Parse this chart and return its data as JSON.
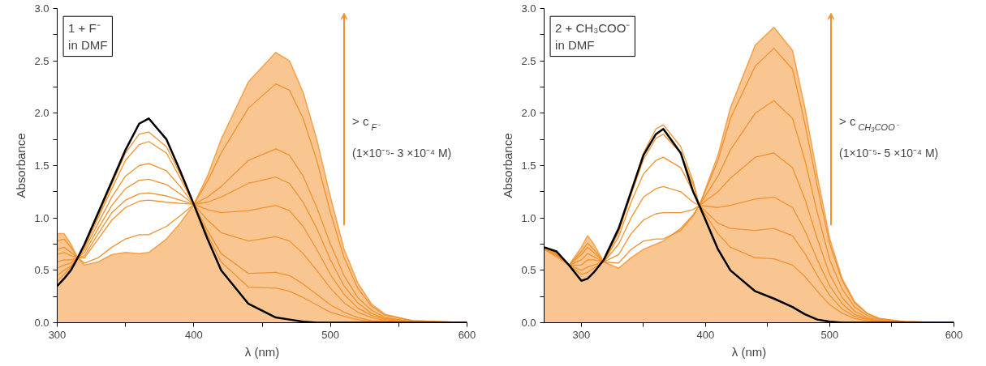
{
  "chart_data": [
    {
      "type": "line",
      "xlabel": "λ (nm)",
      "ylabel": "Absorbance",
      "xlim": [
        300,
        600
      ],
      "ylim": [
        0,
        3
      ],
      "xticks": [
        300,
        {
          "value": 350,
          "label": null
        },
        400,
        {
          "value": 450,
          "label": null
        },
        500,
        {
          "value": 550,
          "label": null
        },
        600
      ],
      "yticks": [
        {
          "value": 0,
          "label": "0.0"
        },
        {
          "value": 0.25,
          "label": null
        },
        0.5,
        {
          "value": 0.75,
          "label": null
        },
        {
          "value": 1,
          "label": "1.0"
        },
        {
          "value": 1.25,
          "label": null
        },
        1.5,
        {
          "value": 1.75,
          "label": null
        },
        {
          "value": 2,
          "label": "2.0"
        },
        {
          "value": 2.25,
          "label": null
        },
        2.5,
        {
          "value": 2.75,
          "label": null
        },
        {
          "value": 3,
          "label": "3.0"
        }
      ],
      "grid": false,
      "annotations": [
        "1 + F⁻",
        "in DMF",
        "> c$_{F⁻}$",
        "(1×10⁻⁵- 3 ×10⁻⁴ M)"
      ],
      "x": [
        300,
        305,
        310,
        315,
        320,
        330,
        340,
        350,
        360,
        367,
        380,
        390,
        400,
        410,
        420,
        440,
        460,
        470,
        480,
        490,
        500,
        510,
        520,
        530,
        540,
        560,
        600
      ],
      "series": [
        {
          "type": "area",
          "color": "#f5a04a",
          "values": [
            0.85,
            0.85,
            0.75,
            0.62,
            0.55,
            0.58,
            0.65,
            0.67,
            0.66,
            0.67,
            0.8,
            0.95,
            1.13,
            1.4,
            1.75,
            2.3,
            2.58,
            2.5,
            2.2,
            1.75,
            1.2,
            0.7,
            0.38,
            0.18,
            0.08,
            0.02,
            0
          ]
        },
        {
          "color": "#f0922e",
          "values": [
            0.78,
            0.8,
            0.72,
            0.62,
            0.57,
            0.62,
            0.72,
            0.8,
            0.84,
            0.84,
            0.92,
            1.02,
            1.13,
            1.35,
            1.62,
            2.05,
            2.28,
            2.22,
            1.95,
            1.55,
            1.05,
            0.62,
            0.33,
            0.16,
            0.07,
            0.02,
            0
          ]
        },
        {
          "color": "#f0922e",
          "values": [
            0.7,
            0.72,
            0.67,
            0.62,
            0.62,
            0.8,
            0.98,
            1.1,
            1.16,
            1.17,
            1.15,
            1.14,
            1.13,
            1.2,
            1.3,
            1.55,
            1.66,
            1.6,
            1.4,
            1.1,
            0.75,
            0.45,
            0.24,
            0.12,
            0.05,
            0.01,
            0
          ]
        },
        {
          "color": "#f0922e",
          "values": [
            0.65,
            0.67,
            0.64,
            0.62,
            0.64,
            0.85,
            1.05,
            1.17,
            1.23,
            1.24,
            1.21,
            1.17,
            1.13,
            1.15,
            1.2,
            1.33,
            1.39,
            1.33,
            1.15,
            0.9,
            0.6,
            0.35,
            0.19,
            0.09,
            0.04,
            0.01,
            0
          ]
        },
        {
          "color": "#f0922e",
          "values": [
            0.58,
            0.6,
            0.6,
            0.62,
            0.67,
            0.9,
            1.12,
            1.28,
            1.36,
            1.37,
            1.32,
            1.23,
            1.13,
            1.08,
            1.05,
            1.07,
            1.12,
            1.07,
            0.92,
            0.7,
            0.46,
            0.27,
            0.14,
            0.07,
            0.03,
            0.01,
            0
          ]
        },
        {
          "color": "#f0922e",
          "values": [
            0.52,
            0.55,
            0.57,
            0.62,
            0.7,
            0.95,
            1.2,
            1.4,
            1.5,
            1.52,
            1.45,
            1.3,
            1.13,
            0.98,
            0.86,
            0.78,
            0.82,
            0.78,
            0.66,
            0.5,
            0.33,
            0.19,
            0.1,
            0.05,
            0.02,
            0,
            0
          ]
        },
        {
          "color": "#f0922e",
          "values": [
            0.45,
            0.5,
            0.54,
            0.62,
            0.72,
            1.0,
            1.28,
            1.55,
            1.7,
            1.73,
            1.62,
            1.38,
            1.13,
            0.88,
            0.66,
            0.47,
            0.48,
            0.45,
            0.37,
            0.27,
            0.17,
            0.1,
            0.05,
            0.02,
            0.01,
            0,
            0
          ]
        },
        {
          "color": "#f0922e",
          "values": [
            0.4,
            0.46,
            0.53,
            0.62,
            0.74,
            1.02,
            1.32,
            1.62,
            1.8,
            1.82,
            1.68,
            1.42,
            1.13,
            0.84,
            0.58,
            0.34,
            0.33,
            0.3,
            0.24,
            0.17,
            0.1,
            0.06,
            0.03,
            0.01,
            0,
            0,
            0
          ]
        },
        {
          "color": "#000000",
          "values": [
            0.35,
            0.42,
            0.5,
            0.62,
            0.75,
            1.05,
            1.35,
            1.65,
            1.9,
            1.95,
            1.75,
            1.45,
            1.13,
            0.8,
            0.5,
            0.18,
            0.05,
            0.03,
            0.01,
            0,
            0,
            0,
            0,
            0,
            0,
            0,
            0
          ]
        }
      ]
    },
    {
      "type": "line",
      "xlabel": "λ (nm)",
      "ylabel": "Absorbance",
      "xlim": [
        270,
        600
      ],
      "ylim": [
        0,
        3
      ],
      "xticks": [
        300,
        {
          "value": 350,
          "label": null
        },
        400,
        {
          "value": 450,
          "label": null
        },
        500,
        {
          "value": 550,
          "label": null
        },
        600
      ],
      "yticks": [
        {
          "value": 0,
          "label": "0.0"
        },
        {
          "value": 0.25,
          "label": null
        },
        0.5,
        {
          "value": 0.75,
          "label": null
        },
        {
          "value": 1,
          "label": "1.0"
        },
        {
          "value": 1.25,
          "label": null
        },
        1.5,
        {
          "value": 1.75,
          "label": null
        },
        {
          "value": 2,
          "label": "2.0"
        },
        {
          "value": 2.25,
          "label": null
        },
        2.5,
        {
          "value": 2.75,
          "label": null
        },
        {
          "value": 3,
          "label": "3.0"
        }
      ],
      "grid": false,
      "annotations": [
        "2 + CH₃COO⁻",
        "in DMF",
        "> c$_{CH₃COO⁻}$",
        "(1×10⁻⁵- 5 ×10⁻⁴ M)"
      ],
      "x": [
        270,
        280,
        290,
        300,
        305,
        310,
        318,
        330,
        340,
        350,
        360,
        366,
        380,
        390,
        395,
        410,
        420,
        440,
        455,
        470,
        480,
        490,
        500,
        510,
        520,
        530,
        540,
        560,
        600
      ],
      "series": [
        {
          "type": "area",
          "color": "#f5a04a",
          "values": [
            0.72,
            0.65,
            0.55,
            0.72,
            0.83,
            0.75,
            0.58,
            0.52,
            0.62,
            0.7,
            0.75,
            0.78,
            0.9,
            1.03,
            1.12,
            1.6,
            2.05,
            2.65,
            2.82,
            2.6,
            2.05,
            1.4,
            0.8,
            0.42,
            0.2,
            0.09,
            0.04,
            0.01,
            0
          ]
        },
        {
          "color": "#f0922e",
          "values": [
            0.72,
            0.66,
            0.55,
            0.68,
            0.76,
            0.7,
            0.58,
            0.57,
            0.7,
            0.78,
            0.8,
            0.8,
            0.88,
            1.02,
            1.12,
            1.55,
            1.95,
            2.45,
            2.62,
            2.42,
            1.9,
            1.3,
            0.75,
            0.4,
            0.19,
            0.09,
            0.04,
            0.01,
            0
          ]
        },
        {
          "color": "#f0922e",
          "values": [
            0.71,
            0.65,
            0.55,
            0.65,
            0.72,
            0.67,
            0.58,
            0.65,
            0.85,
            0.98,
            1.04,
            1.05,
            1.05,
            1.08,
            1.12,
            1.4,
            1.65,
            2.0,
            2.12,
            1.95,
            1.55,
            1.05,
            0.6,
            0.32,
            0.15,
            0.07,
            0.03,
            0.01,
            0
          ]
        },
        {
          "color": "#f0922e",
          "values": [
            0.7,
            0.64,
            0.55,
            0.6,
            0.66,
            0.63,
            0.58,
            0.75,
            1.0,
            1.2,
            1.28,
            1.3,
            1.25,
            1.15,
            1.12,
            1.25,
            1.38,
            1.58,
            1.62,
            1.48,
            1.18,
            0.8,
            0.46,
            0.24,
            0.11,
            0.05,
            0.02,
            0,
            0
          ]
        },
        {
          "color": "#f0922e",
          "values": [
            0.7,
            0.63,
            0.55,
            0.55,
            0.6,
            0.6,
            0.58,
            0.82,
            1.15,
            1.42,
            1.55,
            1.58,
            1.48,
            1.25,
            1.12,
            1.1,
            1.12,
            1.18,
            1.2,
            1.1,
            0.88,
            0.6,
            0.35,
            0.18,
            0.08,
            0.04,
            0.02,
            0,
            0
          ]
        },
        {
          "color": "#f0922e",
          "values": [
            0.71,
            0.66,
            0.55,
            0.5,
            0.53,
            0.55,
            0.58,
            0.86,
            1.22,
            1.56,
            1.76,
            1.8,
            1.62,
            1.32,
            1.12,
            0.95,
            0.9,
            0.88,
            0.9,
            0.83,
            0.66,
            0.45,
            0.26,
            0.13,
            0.06,
            0.03,
            0.01,
            0,
            0
          ]
        },
        {
          "color": "#f0922e",
          "values": [
            0.72,
            0.67,
            0.55,
            0.46,
            0.48,
            0.52,
            0.58,
            0.88,
            1.25,
            1.62,
            1.85,
            1.89,
            1.68,
            1.35,
            1.12,
            0.85,
            0.72,
            0.62,
            0.61,
            0.55,
            0.44,
            0.3,
            0.17,
            0.09,
            0.04,
            0.02,
            0.01,
            0,
            0
          ]
        },
        {
          "color": "#000000",
          "values": [
            0.72,
            0.68,
            0.55,
            0.4,
            0.42,
            0.48,
            0.6,
            0.9,
            1.25,
            1.6,
            1.8,
            1.85,
            1.62,
            1.25,
            1.12,
            0.7,
            0.5,
            0.3,
            0.23,
            0.15,
            0.08,
            0.03,
            0.01,
            0,
            0,
            0,
            0,
            0,
            0
          ]
        }
      ]
    }
  ]
}
